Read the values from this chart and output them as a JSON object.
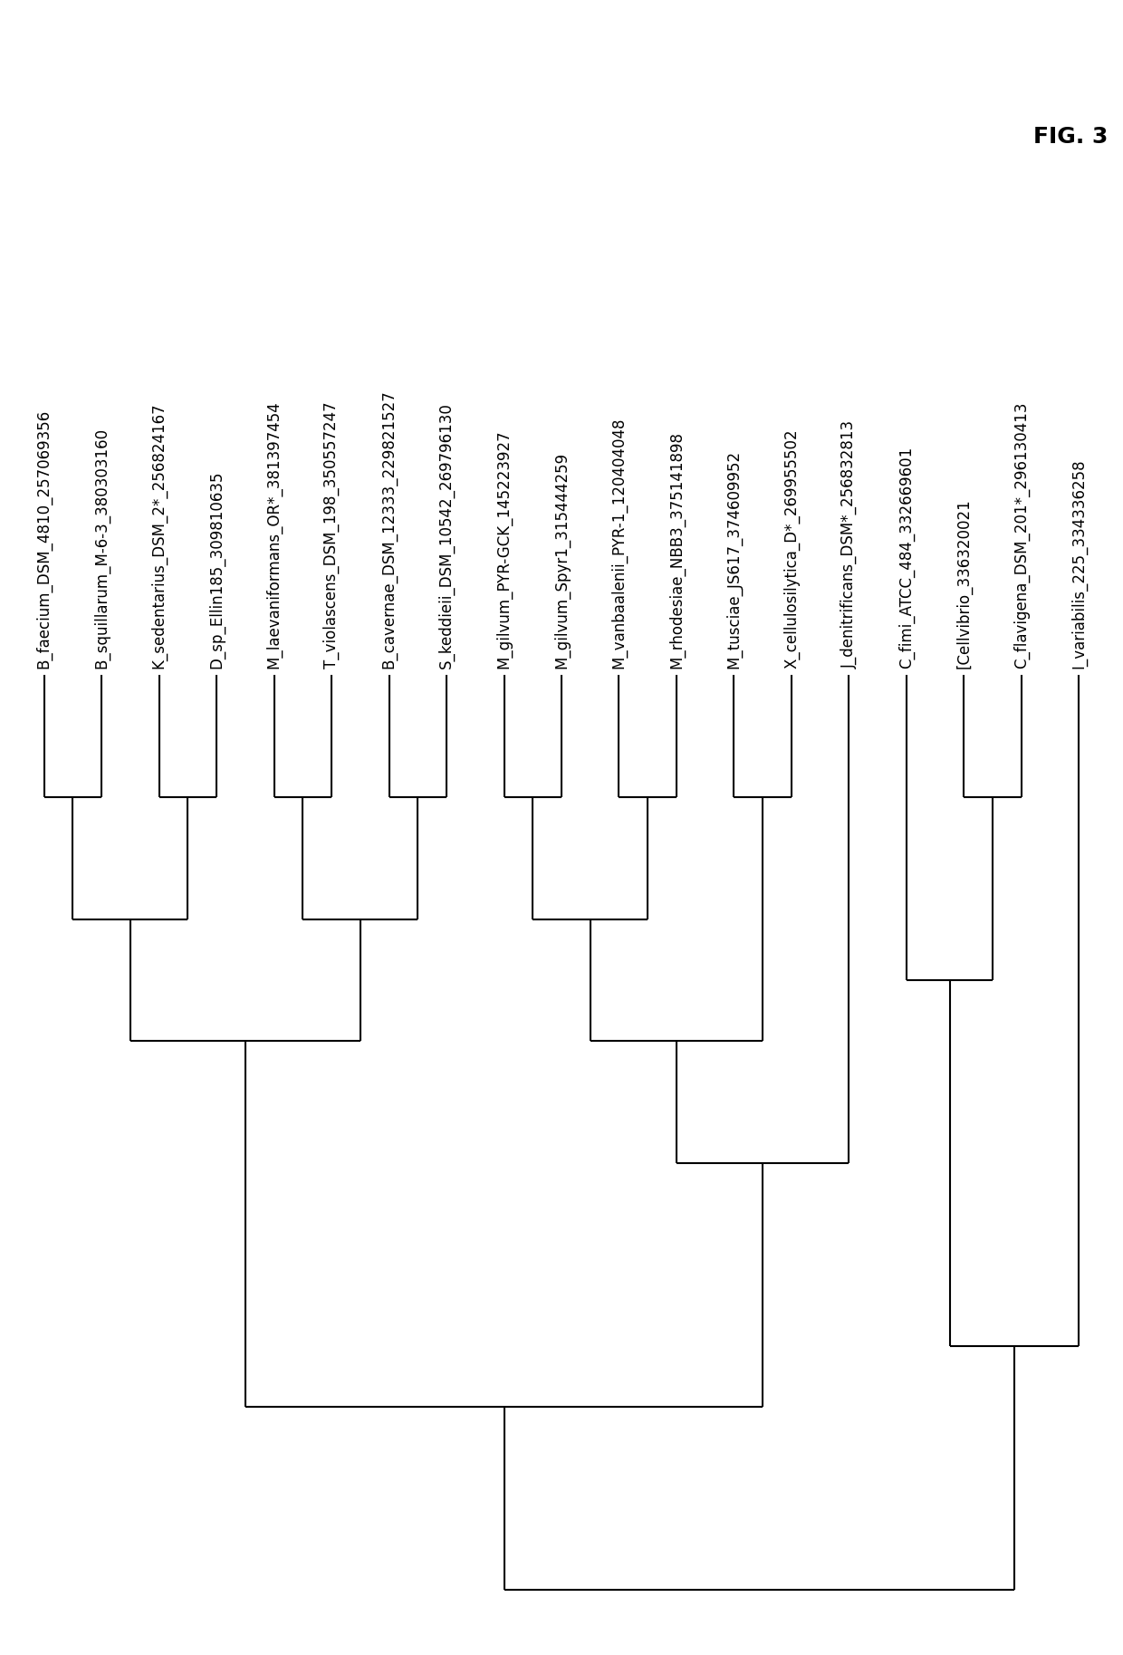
{
  "taxa": [
    "B_faecium_DSM_4810_257069356",
    "B_squillarum_M-6-3_380303160",
    "K_sedentarius_DSM_2*_256824167",
    "D_sp_Ellin185_309810635",
    "M_laevaniformans_OR*_381397454",
    "T_violascens_DSM_198_350557247",
    "B_cavernae_DSM_12333_229821527",
    "S_keddieii_DSM_10542_269796130",
    "M_gilvum_PYR-GCK_145223927",
    "M_gilvum_Spyr1_315444259",
    "M_vanbaalenii_PYR-1_120404048",
    "M_rhodesiae_NBB3_375141898",
    "M_tusciae_JS617_374609952",
    "X_cellulosilytica_D*_269955502",
    "J_denitrificans_DSM*_256832813",
    "C_fimi_ATCC_484_332669601",
    "[Cellvibrio_336320021",
    "C_flavigena_DSM_201*_296130413",
    "I_variabilis_225_334336258"
  ],
  "fig_label": "FIG. 3",
  "background_color": "#ffffff",
  "line_color": "#000000",
  "font_size": 12,
  "fig_label_size": 18,
  "lw": 1.5
}
